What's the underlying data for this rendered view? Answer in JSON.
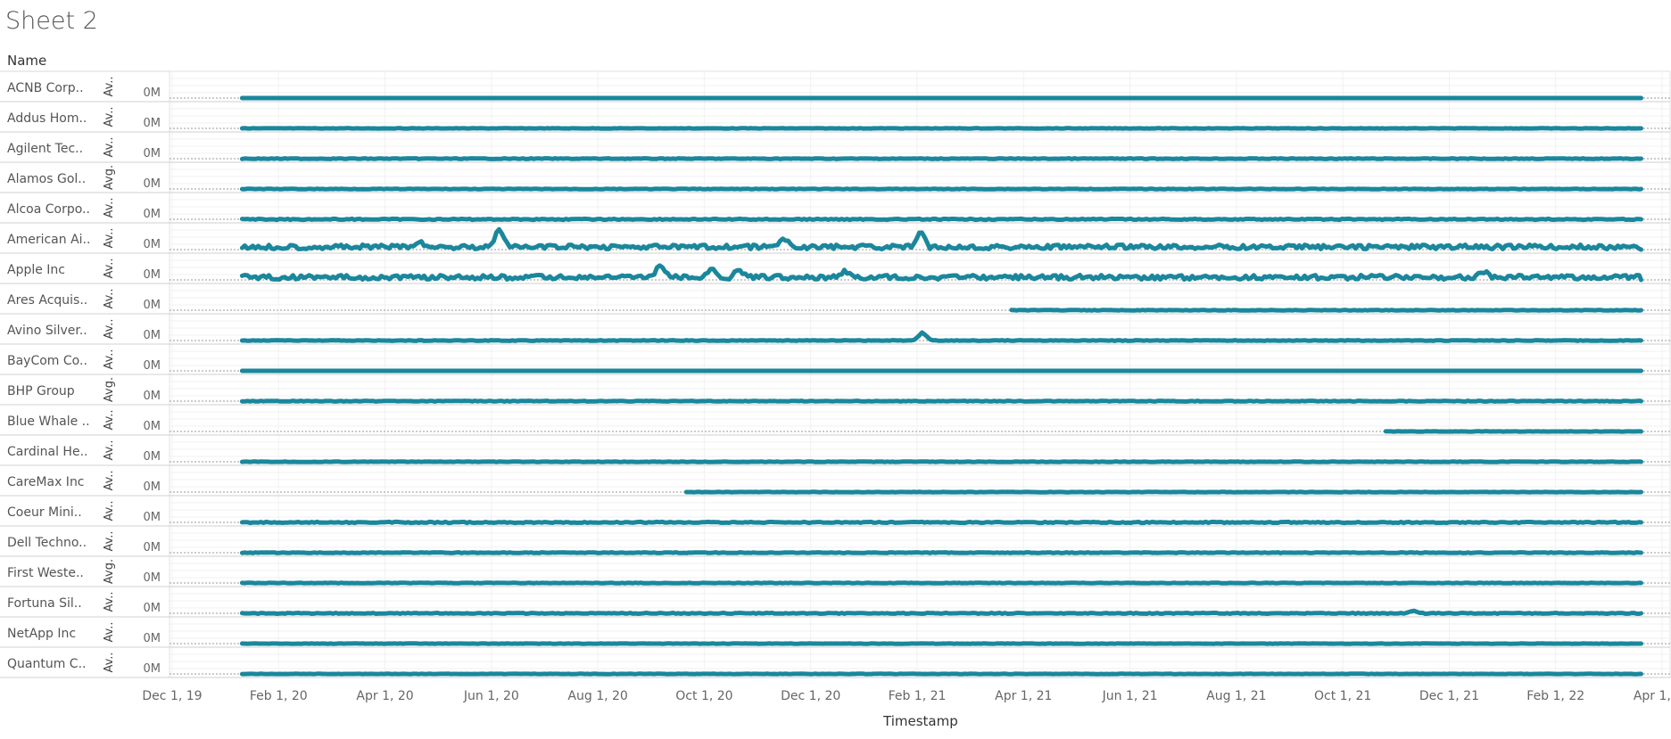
{
  "sheet_title": "Sheet 2",
  "row_header": "Name",
  "x_axis_title": "Timestamp",
  "chart_data": {
    "type": "line",
    "xlim": [
      "2019-12-01",
      "2022-04-01"
    ],
    "x_ticks": [
      "Dec 1, 19",
      "Feb 1, 20",
      "Apr 1, 20",
      "Jun 1, 20",
      "Aug 1, 20",
      "Oct 1, 20",
      "Dec 1, 20",
      "Feb 1, 21",
      "Apr 1, 21",
      "Jun 1, 21",
      "Aug 1, 21",
      "Oct 1, 21",
      "Dec 1, 21",
      "Feb 1, 22",
      "Apr 1, 22"
    ],
    "y_tick_label": "0M",
    "mark_color": "#1a879c",
    "grid": true,
    "panes": [
      {
        "name": "ACNB Corp..",
        "axis_label": "Av..",
        "start": "2020-01-10",
        "end": "2022-03-20",
        "noise": 0.0,
        "spikes": []
      },
      {
        "name": "Addus Hom..",
        "axis_label": "Av..",
        "start": "2020-01-10",
        "end": "2022-03-20",
        "noise": 0.2,
        "spikes": []
      },
      {
        "name": "Agilent Tec..",
        "axis_label": "Av..",
        "start": "2020-01-10",
        "end": "2022-03-20",
        "noise": 0.4,
        "spikes": []
      },
      {
        "name": "Alamos Gol..",
        "axis_label": "Avg.",
        "start": "2020-01-10",
        "end": "2022-03-20",
        "noise": 0.3,
        "spikes": []
      },
      {
        "name": "Alcoa Corpo..",
        "axis_label": "Av..",
        "start": "2020-01-10",
        "end": "2022-03-20",
        "noise": 0.6,
        "spikes": []
      },
      {
        "name": "American Ai..",
        "axis_label": "Av..",
        "start": "2020-01-10",
        "end": "2022-03-20",
        "noise": 2.5,
        "spikes": [
          {
            "date": "2020-06-05",
            "h": 22
          },
          {
            "date": "2020-11-15",
            "h": 10
          },
          {
            "date": "2021-02-01",
            "h": 16
          },
          {
            "date": "2020-04-20",
            "h": 6
          }
        ]
      },
      {
        "name": "Apple Inc",
        "axis_label": "Av..",
        "start": "2020-01-10",
        "end": "2022-03-20",
        "noise": 2.5,
        "spikes": [
          {
            "date": "2020-09-05",
            "h": 14
          },
          {
            "date": "2020-10-05",
            "h": 9
          },
          {
            "date": "2020-10-20",
            "h": 8
          },
          {
            "date": "2020-12-20",
            "h": 7
          },
          {
            "date": "2021-12-20",
            "h": 7
          }
        ]
      },
      {
        "name": "Ares Acquis..",
        "axis_label": "Av..",
        "start": "2021-03-25",
        "end": "2022-03-20",
        "noise": 0.3,
        "spikes": []
      },
      {
        "name": "Avino Silver..",
        "axis_label": "Av..",
        "start": "2020-01-10",
        "end": "2022-03-20",
        "noise": 0.4,
        "spikes": [
          {
            "date": "2021-02-02",
            "h": 9
          }
        ]
      },
      {
        "name": "BayCom Co..",
        "axis_label": "Av..",
        "start": "2020-01-10",
        "end": "2022-03-20",
        "noise": 0.0,
        "spikes": []
      },
      {
        "name": "BHP Group",
        "axis_label": "Avg.",
        "start": "2020-01-10",
        "end": "2022-03-20",
        "noise": 0.4,
        "spikes": []
      },
      {
        "name": "Blue Whale ..",
        "axis_label": "Av..",
        "start": "2021-10-25",
        "end": "2022-03-20",
        "noise": 0.2,
        "spikes": []
      },
      {
        "name": "Cardinal He..",
        "axis_label": "Av..",
        "start": "2020-01-10",
        "end": "2022-03-20",
        "noise": 0.3,
        "spikes": []
      },
      {
        "name": "CareMax Inc",
        "axis_label": "Av..",
        "start": "2020-09-20",
        "end": "2022-03-20",
        "noise": 0.2,
        "spikes": []
      },
      {
        "name": "Coeur Mini..",
        "axis_label": "Av..",
        "start": "2020-01-10",
        "end": "2022-03-20",
        "noise": 0.6,
        "spikes": []
      },
      {
        "name": "Dell Techno..",
        "axis_label": "Av..",
        "start": "2020-01-10",
        "end": "2022-03-20",
        "noise": 0.4,
        "spikes": []
      },
      {
        "name": "First Weste..",
        "axis_label": "Avg.",
        "start": "2020-01-10",
        "end": "2022-03-20",
        "noise": 0.3,
        "spikes": []
      },
      {
        "name": "Fortuna Sil..",
        "axis_label": "Av..",
        "start": "2020-01-10",
        "end": "2022-03-20",
        "noise": 0.5,
        "spikes": [
          {
            "date": "2021-11-10",
            "h": 3
          }
        ]
      },
      {
        "name": "NetApp Inc",
        "axis_label": "Av..",
        "start": "2020-01-10",
        "end": "2022-03-20",
        "noise": 0.2,
        "spikes": []
      },
      {
        "name": "Quantum C..",
        "axis_label": "Av..",
        "start": "2020-01-10",
        "end": "2022-03-20",
        "noise": 0.2,
        "spikes": []
      }
    ]
  }
}
